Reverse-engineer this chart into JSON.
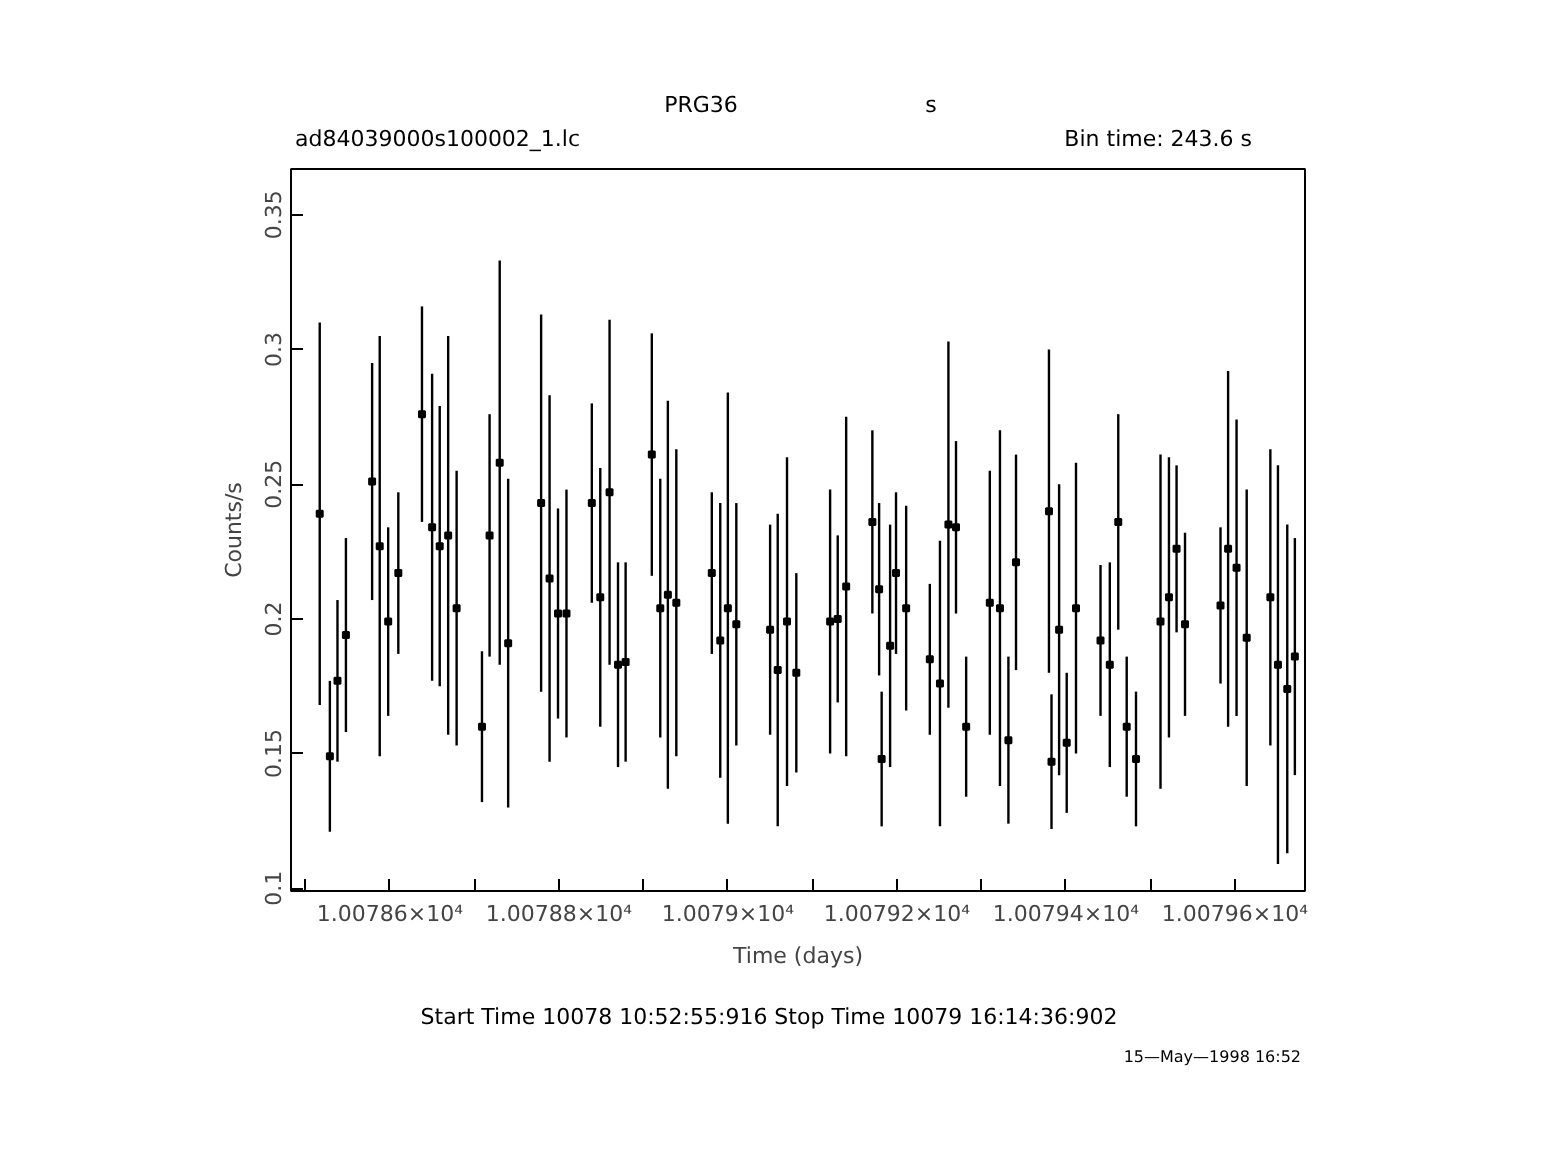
{
  "chart_data": {
    "type": "scatter",
    "title": "PRG36",
    "subtitle": "ad84039000s100002_1.lc",
    "xlabel": "Time (days)",
    "ylabel": "Counts/s",
    "annotations": [
      "s",
      "Bin time:    243.6     s",
      "Start Time 10078 10:52:55:916     Stop Time 10079 16:14:36:902",
      "15—May—1998 16:52"
    ],
    "color": "#000000",
    "grid": false,
    "marker": "square",
    "x": [
      10078.517,
      10078.529,
      10078.538,
      10078.548,
      10078.579,
      10078.588,
      10078.598,
      10078.61,
      10078.638,
      10078.65,
      10078.659,
      10078.669,
      10078.679,
      10078.709,
      10078.718,
      10078.73,
      10078.74,
      10078.779,
      10078.789,
      10078.799,
      10078.809,
      10078.839,
      10078.849,
      10078.86,
      10078.87,
      10078.879,
      10078.91,
      10078.92,
      10078.929,
      10078.939,
      10078.981,
      10078.991,
      10079.0,
      10079.01,
      10079.05,
      10079.059,
      10079.07,
      10079.081,
      10079.121,
      10079.13,
      10079.14,
      10079.171,
      10079.179,
      10079.182,
      10079.192,
      10079.199,
      10079.211,
      10079.239,
      10079.251,
      10079.261,
      10079.27,
      10079.282,
      10079.31,
      10079.322,
      10079.332,
      10079.341,
      10079.38,
      10079.383,
      10079.392,
      10079.401,
      10079.412,
      10079.441,
      10079.452,
      10079.462,
      10079.472,
      10079.483,
      10079.512,
      10079.522,
      10079.531,
      10079.541,
      10079.583,
      10079.592,
      10079.602,
      10079.614,
      10079.642,
      10079.651,
      10079.662,
      10079.671
    ],
    "values": [
      0.239,
      0.149,
      0.177,
      0.194,
      0.251,
      0.227,
      0.199,
      0.217,
      0.276,
      0.234,
      0.227,
      0.231,
      0.204,
      0.16,
      0.231,
      0.258,
      0.191,
      0.243,
      0.215,
      0.202,
      0.202,
      0.243,
      0.208,
      0.247,
      0.183,
      0.184,
      0.261,
      0.204,
      0.209,
      0.206,
      0.217,
      0.192,
      0.204,
      0.198,
      0.196,
      0.181,
      0.199,
      0.18,
      0.199,
      0.2,
      0.212,
      0.236,
      0.211,
      0.148,
      0.19,
      0.217,
      0.204,
      0.185,
      0.176,
      0.235,
      0.234,
      0.16,
      0.206,
      0.204,
      0.155,
      0.221,
      0.24,
      0.147,
      0.196,
      0.154,
      0.204,
      0.192,
      0.183,
      0.236,
      0.16,
      0.148,
      0.199,
      0.208,
      0.226,
      0.198,
      0.205,
      0.226,
      0.219,
      0.193,
      0.208,
      0.183,
      0.174,
      0.186
    ],
    "errors": [
      0.071,
      0.028,
      0.03,
      0.036,
      0.044,
      0.078,
      0.035,
      0.03,
      0.04,
      0.057,
      0.052,
      0.074,
      0.051,
      0.028,
      0.045,
      0.075,
      0.061,
      0.07,
      0.068,
      0.039,
      0.046,
      0.037,
      0.048,
      0.064,
      0.038,
      0.037,
      0.045,
      0.048,
      0.072,
      0.057,
      0.03,
      0.051,
      0.08,
      0.045,
      0.039,
      0.058,
      0.061,
      0.037,
      0.049,
      0.031,
      0.063,
      0.034,
      0.032,
      0.025,
      0.045,
      0.03,
      0.038,
      0.028,
      0.053,
      0.068,
      0.032,
      0.026,
      0.049,
      0.066,
      0.031,
      0.04,
      0.06,
      0.025,
      0.054,
      0.026,
      0.054,
      0.028,
      0.038,
      0.04,
      0.026,
      0.025,
      0.062,
      0.052,
      0.031,
      0.034,
      0.029,
      0.066,
      0.055,
      0.055,
      0.055,
      0.074,
      0.061,
      0.044
    ],
    "xlim": [
      10078.483,
      10079.683
    ],
    "ylim": [
      0.099,
      0.367
    ],
    "xticks": [
      {
        "value": 10078.5,
        "label": null
      },
      {
        "value": 10078.6,
        "label": "1.00786×10⁴"
      },
      {
        "value": 10078.7,
        "label": null
      },
      {
        "value": 10078.8,
        "label": "1.00788×10⁴"
      },
      {
        "value": 10078.9,
        "label": null
      },
      {
        "value": 10079.0,
        "label": "1.0079×10⁴"
      },
      {
        "value": 10079.1,
        "label": null
      },
      {
        "value": 10079.2,
        "label": "1.00792×10⁴"
      },
      {
        "value": 10079.3,
        "label": null
      },
      {
        "value": 10079.4,
        "label": "1.00794×10⁴"
      },
      {
        "value": 10079.5,
        "label": null
      },
      {
        "value": 10079.6,
        "label": "1.00796×10⁴"
      }
    ],
    "yticks": [
      0.1,
      0.15,
      0.2,
      0.25,
      0.3,
      0.35
    ]
  }
}
